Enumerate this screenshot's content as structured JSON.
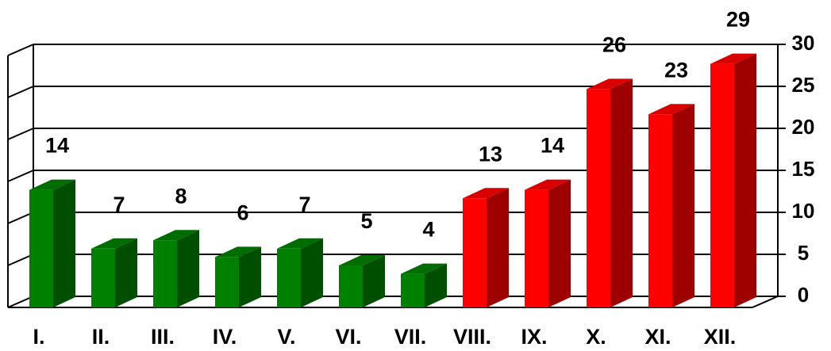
{
  "chart_data": {
    "type": "bar3d",
    "categories": [
      "I.",
      "II.",
      "III.",
      "IV.",
      "V.",
      "VI.",
      "VII.",
      "VIII.",
      "IX.",
      "X.",
      "XI.",
      "XII."
    ],
    "values": [
      14,
      7,
      8,
      6,
      7,
      5,
      4,
      13,
      14,
      26,
      23,
      29
    ],
    "colors": [
      "#008000",
      "#008000",
      "#008000",
      "#008000",
      "#008000",
      "#008000",
      "#008000",
      "#ff0000",
      "#ff0000",
      "#ff0000",
      "#ff0000",
      "#ff0000"
    ],
    "ylim": [
      0,
      30
    ],
    "yticks": [
      0,
      5,
      10,
      15,
      20,
      25,
      30
    ],
    "grid": true,
    "y_axis_side": "right"
  }
}
